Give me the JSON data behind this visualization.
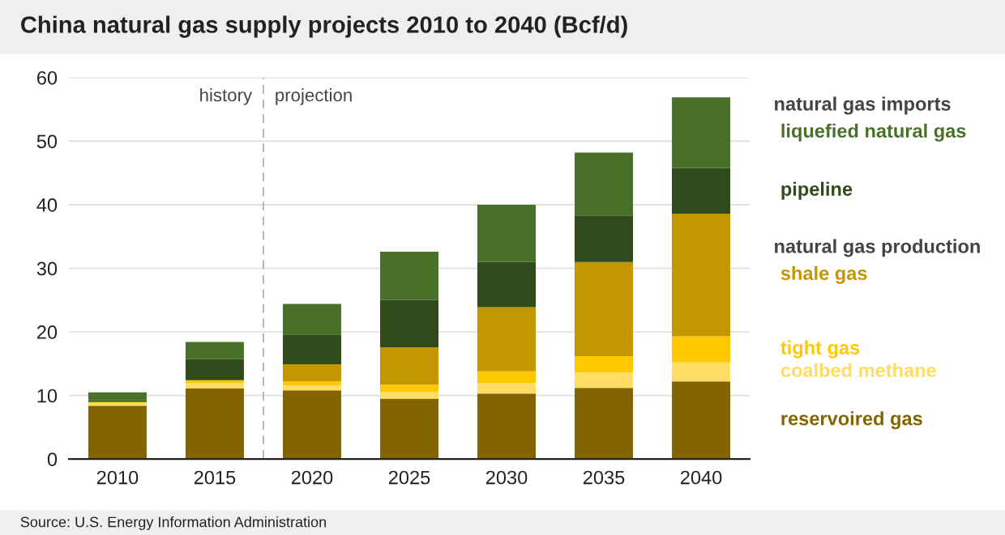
{
  "chart_data": {
    "type": "bar",
    "stacked": true,
    "title": "China natural gas supply projects 2010 to 2040 (Bcf/d)",
    "x": [
      2010,
      2015,
      2020,
      2025,
      2030,
      2035,
      2040
    ],
    "xlim": [
      2007.5,
      2042.5
    ],
    "xticks": [
      2010,
      2015,
      2020,
      2025,
      2030,
      2035,
      2040
    ],
    "ylim": [
      0,
      60
    ],
    "yticks": [
      0,
      10,
      20,
      30,
      40,
      50,
      60
    ],
    "grid": "y",
    "legend": "right",
    "series": [
      {
        "name": "reservoired gas",
        "color": "#826400",
        "values": [
          8.4,
          11.1,
          10.8,
          9.5,
          10.3,
          11.2,
          12.2
        ]
      },
      {
        "name": "coalbed methane",
        "color": "#ffdc64",
        "values": [
          0.4,
          0.9,
          0.8,
          1.1,
          1.7,
          2.4,
          3.0
        ]
      },
      {
        "name": "tight gas",
        "color": "#ffc800",
        "values": [
          0.2,
          0.4,
          0.6,
          1.1,
          1.8,
          2.6,
          4.1
        ]
      },
      {
        "name": "shale gas",
        "color": "#c39600",
        "values": [
          0,
          0,
          2.7,
          5.9,
          10.1,
          14.8,
          19.3
        ]
      },
      {
        "name": "pipeline",
        "color": "#2f4b1b",
        "values": [
          0.2,
          3.3,
          4.7,
          7.4,
          7.1,
          7.3,
          7.2
        ]
      },
      {
        "name": "liquefied natural gas",
        "color": "#487028",
        "values": [
          1.3,
          2.7,
          4.8,
          7.6,
          9.0,
          9.9,
          11.1
        ]
      }
    ],
    "ref_lines": [
      {
        "axis": "x",
        "value": 2017.5,
        "color": "#b0b0b0",
        "line_style": "dashed"
      }
    ],
    "annotations": [
      {
        "text": "history",
        "x": 2017.5,
        "y": 57
      },
      {
        "text": "projection",
        "x": 2017.5,
        "y": 57
      },
      "natural gas imports",
      "natural gas production",
      "Source: U.S. Energy Information Administration"
    ]
  }
}
